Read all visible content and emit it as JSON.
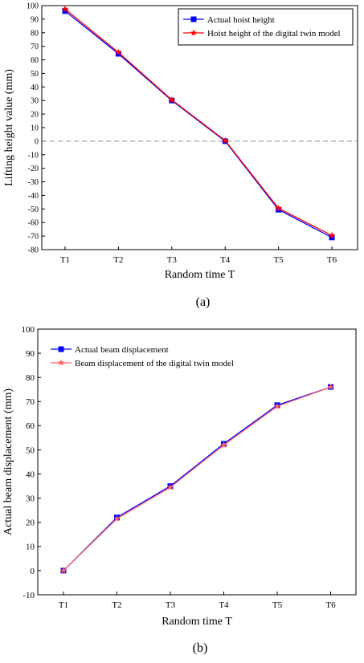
{
  "chart_data": [
    {
      "type": "line",
      "categories": [
        "T1",
        "T2",
        "T3",
        "T4",
        "T5",
        "T6"
      ],
      "series": [
        {
          "name": "Actual hoist height",
          "values": [
            96,
            64.5,
            30,
            0,
            -50.5,
            -71
          ],
          "color": "#0000ff",
          "marker": "square"
        },
        {
          "name": "Hoist height of the digital twin model",
          "values": [
            97.5,
            65.5,
            30.5,
            0.5,
            -49.5,
            -69.5
          ],
          "color": "#ff0000",
          "marker": "star"
        }
      ],
      "xlabel": "Random time T",
      "ylabel": "Lifting height value (mm)",
      "ylim": [
        -80,
        100
      ],
      "yticks": [
        -80,
        -70,
        -60,
        -50,
        -40,
        -30,
        -20,
        -10,
        0,
        10,
        20,
        30,
        40,
        50,
        60,
        70,
        80,
        90,
        100
      ],
      "reference_line": 0,
      "legend": "top-right",
      "caption": "(a)"
    },
    {
      "type": "line",
      "categories": [
        "T1",
        "T2",
        "T3",
        "T4",
        "T5",
        "T6"
      ],
      "series": [
        {
          "name": "Actual beam displacement",
          "values": [
            0,
            22,
            35,
            52.5,
            68.5,
            76
          ],
          "color": "#0000ff",
          "marker": "square"
        },
        {
          "name": "Beam displacement of the digital twin model",
          "values": [
            0,
            21.5,
            34.5,
            52,
            68,
            76
          ],
          "color": "#ff6060",
          "marker": "star"
        }
      ],
      "xlabel": "Random time T",
      "ylabel": "Actual beam displacement (mm)",
      "ylim": [
        -10,
        100
      ],
      "yticks": [
        -10,
        0,
        10,
        20,
        30,
        40,
        50,
        60,
        70,
        80,
        90,
        100
      ],
      "legend": "top-left",
      "caption": "(b)"
    }
  ]
}
